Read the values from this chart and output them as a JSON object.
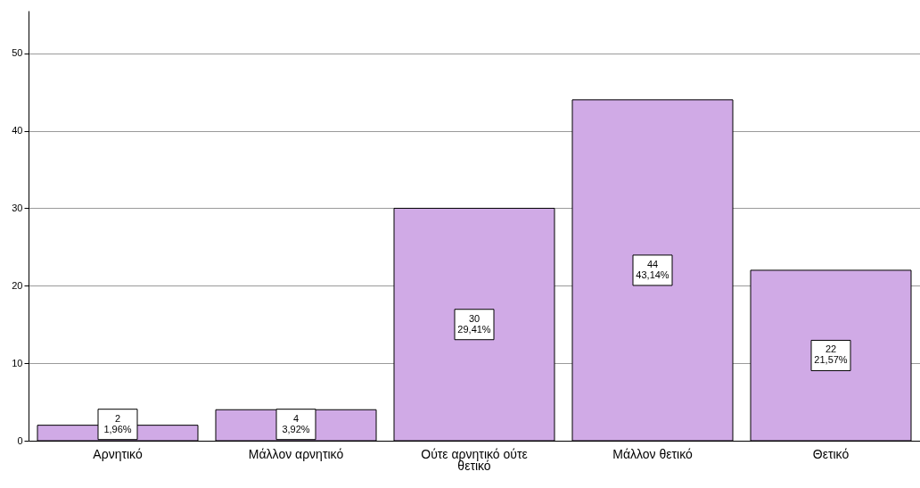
{
  "chart_data": {
    "type": "bar",
    "categories": [
      "Αρνητικό",
      "Μάλλον αρνητικό",
      "Ούτε αρνητικό ούτε θετικό",
      "Μάλλον θετικό",
      "Θετικό"
    ],
    "values": [
      2,
      4,
      30,
      44,
      22
    ],
    "value_labels": [
      "2\n1,96%",
      "4\n3,92%",
      "30\n29,41%",
      "44\n43,14%",
      "22\n21,57%"
    ],
    "color": "#d0aae6",
    "ylim": [
      0,
      55.5
    ],
    "yticks": [
      0,
      10,
      20,
      30,
      40,
      50
    ],
    "grid": "y"
  }
}
